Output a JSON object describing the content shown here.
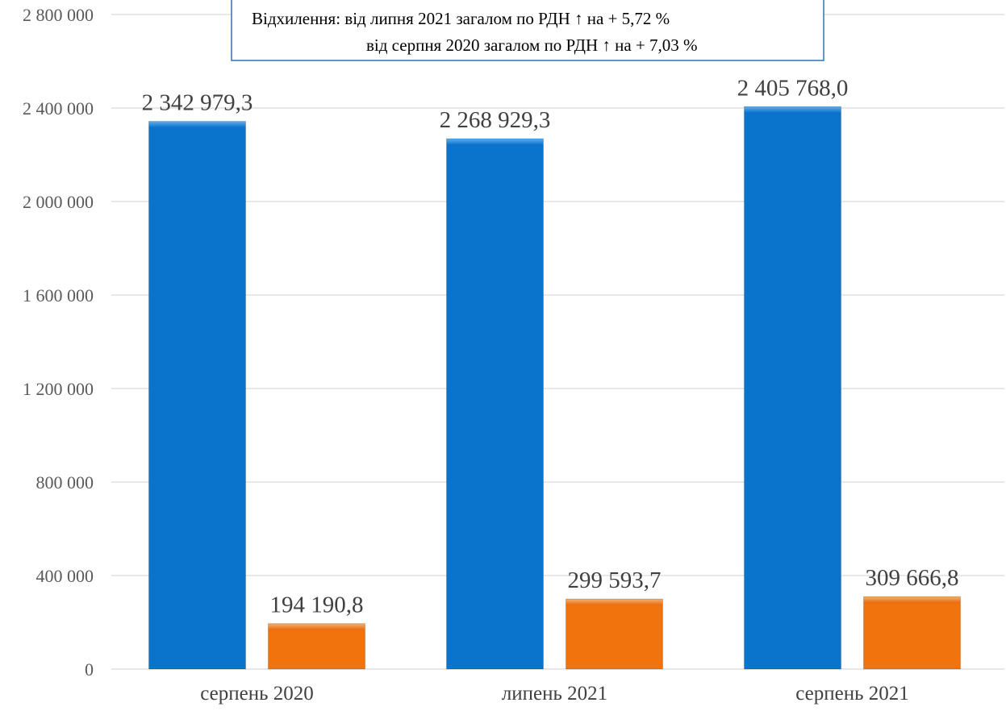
{
  "chart_data": {
    "type": "bar",
    "categories": [
      "серпень 2020",
      "липень 2021",
      "серпень 2021"
    ],
    "series": [
      {
        "values": [
          2342979.3,
          2268929.3,
          2405768.0
        ],
        "labels": [
          "2 342 979,3",
          "2 268 929,3",
          "2 405 768,0"
        ],
        "color": "#0a73cc"
      },
      {
        "values": [
          194190.8,
          299593.7,
          309666.8
        ],
        "labels": [
          "194 190,8",
          "299 593,7",
          "309 666,8"
        ],
        "color": "#f0730e"
      }
    ],
    "ylim": [
      0,
      2800000
    ],
    "yticks": [
      0,
      400000,
      800000,
      1200000,
      1600000,
      2000000,
      2400000,
      2800000
    ],
    "ytick_labels": [
      "0",
      "400 000",
      "800 000",
      "1 200 000",
      "1 600 000",
      "2 000 000",
      "2 400 000",
      "2 800 000"
    ],
    "grid": true,
    "legend": "none",
    "annotation": {
      "line1": "Відхилення: від липня 2021 загалом по РДН ↑ на + 5,72 %",
      "line2": "від серпня 2020 загалом по РДН ↑ на + 7,03 %"
    }
  }
}
